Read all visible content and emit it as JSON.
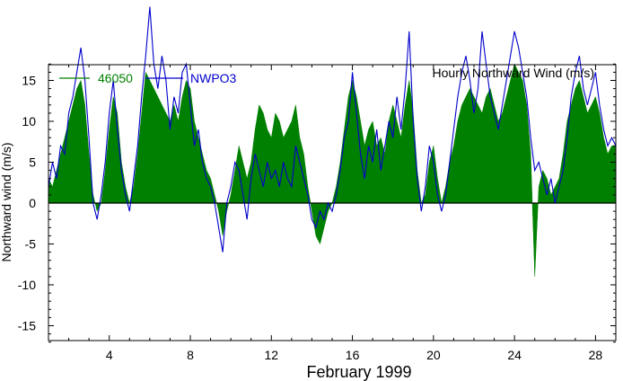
{
  "chart_data": {
    "type": "area",
    "title": "Hourly Northward Wind (m/s)",
    "xlabel": "February 1999",
    "ylabel": "Northward wind (m/s)",
    "xlim": [
      1,
      29
    ],
    "ylim": [
      -17,
      17
    ],
    "x_ticks": [
      4,
      8,
      12,
      16,
      20,
      24,
      28
    ],
    "y_ticks": [
      -15,
      -10,
      -5,
      0,
      5,
      10,
      15
    ],
    "legend_position": "top-left",
    "grid": false,
    "series": [
      {
        "name": "46050",
        "style": "filled-area",
        "color": "#008000",
        "points": [
          [
            1.0,
            3.0
          ],
          [
            1.2,
            2.0
          ],
          [
            1.4,
            4.0
          ],
          [
            1.6,
            6.0
          ],
          [
            1.8,
            8.0
          ],
          [
            2.0,
            10.0
          ],
          [
            2.2,
            12.0
          ],
          [
            2.4,
            14.0
          ],
          [
            2.6,
            15.0
          ],
          [
            2.8,
            12.0
          ],
          [
            3.0,
            6.0
          ],
          [
            3.2,
            1.0
          ],
          [
            3.4,
            -1.0
          ],
          [
            3.6,
            0.0
          ],
          [
            3.8,
            4.0
          ],
          [
            4.0,
            9.0
          ],
          [
            4.2,
            13.0
          ],
          [
            4.4,
            11.0
          ],
          [
            4.6,
            5.0
          ],
          [
            4.8,
            2.0
          ],
          [
            5.0,
            0.0
          ],
          [
            5.2,
            2.0
          ],
          [
            5.4,
            6.0
          ],
          [
            5.6,
            11.0
          ],
          [
            5.8,
            16.0
          ],
          [
            6.0,
            15.0
          ],
          [
            6.2,
            14.0
          ],
          [
            6.4,
            13.0
          ],
          [
            6.6,
            12.0
          ],
          [
            6.8,
            11.0
          ],
          [
            7.0,
            10.0
          ],
          [
            7.2,
            12.0
          ],
          [
            7.4,
            10.0
          ],
          [
            7.6,
            13.0
          ],
          [
            7.8,
            15.0
          ],
          [
            8.0,
            14.0
          ],
          [
            8.2,
            10.0
          ],
          [
            8.4,
            8.0
          ],
          [
            8.6,
            6.0
          ],
          [
            8.8,
            4.0
          ],
          [
            9.0,
            3.0
          ],
          [
            9.2,
            1.0
          ],
          [
            9.4,
            -1.0
          ],
          [
            9.6,
            -4.0
          ],
          [
            9.8,
            -1.0
          ],
          [
            10.0,
            1.0
          ],
          [
            10.2,
            4.0
          ],
          [
            10.4,
            7.0
          ],
          [
            10.6,
            5.0
          ],
          [
            10.8,
            3.0
          ],
          [
            11.0,
            5.0
          ],
          [
            11.2,
            9.0
          ],
          [
            11.4,
            12.0
          ],
          [
            11.6,
            11.0
          ],
          [
            11.8,
            9.0
          ],
          [
            12.0,
            8.0
          ],
          [
            12.2,
            11.0
          ],
          [
            12.4,
            10.0
          ],
          [
            12.6,
            8.0
          ],
          [
            12.8,
            9.0
          ],
          [
            13.0,
            10.0
          ],
          [
            13.2,
            12.0
          ],
          [
            13.4,
            8.0
          ],
          [
            13.6,
            6.0
          ],
          [
            13.8,
            2.0
          ],
          [
            14.0,
            -1.0
          ],
          [
            14.2,
            -4.0
          ],
          [
            14.4,
            -5.0
          ],
          [
            14.6,
            -3.0
          ],
          [
            14.8,
            -1.0
          ],
          [
            15.0,
            0.0
          ],
          [
            15.2,
            2.0
          ],
          [
            15.4,
            5.0
          ],
          [
            15.6,
            9.0
          ],
          [
            15.8,
            13.0
          ],
          [
            16.0,
            15.0
          ],
          [
            16.2,
            13.0
          ],
          [
            16.4,
            10.0
          ],
          [
            16.6,
            7.0
          ],
          [
            16.8,
            9.0
          ],
          [
            17.0,
            10.0
          ],
          [
            17.2,
            7.0
          ],
          [
            17.4,
            8.0
          ],
          [
            17.6,
            6.0
          ],
          [
            17.8,
            10.0
          ],
          [
            18.0,
            12.0
          ],
          [
            18.2,
            10.0
          ],
          [
            18.4,
            8.0
          ],
          [
            18.6,
            12.0
          ],
          [
            18.8,
            15.0
          ],
          [
            19.0,
            11.0
          ],
          [
            19.2,
            4.0
          ],
          [
            19.4,
            0.0
          ],
          [
            19.6,
            1.0
          ],
          [
            19.8,
            5.0
          ],
          [
            20.0,
            7.0
          ],
          [
            20.2,
            3.0
          ],
          [
            20.4,
            0.0
          ],
          [
            20.6,
            2.0
          ],
          [
            20.8,
            5.0
          ],
          [
            21.0,
            7.0
          ],
          [
            21.2,
            10.0
          ],
          [
            21.4,
            12.0
          ],
          [
            21.6,
            13.0
          ],
          [
            21.8,
            14.0
          ],
          [
            22.0,
            13.0
          ],
          [
            22.2,
            12.0
          ],
          [
            22.4,
            11.0
          ],
          [
            22.6,
            13.0
          ],
          [
            22.8,
            14.0
          ],
          [
            23.0,
            12.0
          ],
          [
            23.2,
            10.0
          ],
          [
            23.4,
            11.0
          ],
          [
            23.6,
            13.0
          ],
          [
            23.8,
            15.0
          ],
          [
            24.0,
            17.0
          ],
          [
            24.2,
            16.0
          ],
          [
            24.4,
            15.0
          ],
          [
            24.6,
            12.0
          ],
          [
            24.8,
            6.0
          ],
          [
            25.0,
            -9.0
          ],
          [
            25.2,
            2.0
          ],
          [
            25.4,
            4.0
          ],
          [
            25.6,
            3.0
          ],
          [
            25.8,
            1.0
          ],
          [
            26.0,
            2.0
          ],
          [
            26.2,
            3.0
          ],
          [
            26.4,
            6.0
          ],
          [
            26.6,
            10.0
          ],
          [
            26.8,
            12.0
          ],
          [
            27.0,
            14.0
          ],
          [
            27.2,
            15.0
          ],
          [
            27.4,
            13.0
          ],
          [
            27.6,
            11.0
          ],
          [
            27.8,
            12.0
          ],
          [
            28.0,
            13.0
          ],
          [
            28.2,
            11.0
          ],
          [
            28.4,
            8.0
          ],
          [
            28.6,
            6.0
          ],
          [
            28.8,
            7.0
          ],
          [
            29.0,
            7.0
          ]
        ]
      },
      {
        "name": "NWPO3",
        "style": "line",
        "color": "#0000cc",
        "points": [
          [
            1.0,
            2.0
          ],
          [
            1.2,
            5.0
          ],
          [
            1.4,
            3.0
          ],
          [
            1.6,
            7.0
          ],
          [
            1.8,
            6.0
          ],
          [
            2.0,
            11.0
          ],
          [
            2.2,
            13.0
          ],
          [
            2.4,
            16.0
          ],
          [
            2.6,
            19.0
          ],
          [
            2.8,
            15.0
          ],
          [
            3.0,
            8.0
          ],
          [
            3.2,
            0.0
          ],
          [
            3.4,
            -2.0
          ],
          [
            3.6,
            1.0
          ],
          [
            3.8,
            5.0
          ],
          [
            4.0,
            11.0
          ],
          [
            4.2,
            15.0
          ],
          [
            4.4,
            9.0
          ],
          [
            4.6,
            4.0
          ],
          [
            4.8,
            1.0
          ],
          [
            5.0,
            -1.0
          ],
          [
            5.2,
            3.0
          ],
          [
            5.4,
            7.0
          ],
          [
            5.6,
            13.0
          ],
          [
            5.8,
            18.0
          ],
          [
            6.0,
            24.0
          ],
          [
            6.2,
            17.0
          ],
          [
            6.4,
            14.0
          ],
          [
            6.6,
            18.0
          ],
          [
            6.8,
            15.0
          ],
          [
            7.0,
            9.0
          ],
          [
            7.2,
            13.0
          ],
          [
            7.4,
            11.0
          ],
          [
            7.6,
            16.0
          ],
          [
            7.8,
            17.0
          ],
          [
            8.0,
            12.0
          ],
          [
            8.2,
            7.0
          ],
          [
            8.4,
            9.0
          ],
          [
            8.6,
            5.0
          ],
          [
            8.8,
            3.0
          ],
          [
            9.0,
            2.0
          ],
          [
            9.2,
            0.0
          ],
          [
            9.4,
            -3.0
          ],
          [
            9.6,
            -6.0
          ],
          [
            9.8,
            0.0
          ],
          [
            10.0,
            2.0
          ],
          [
            10.2,
            5.0
          ],
          [
            10.4,
            4.0
          ],
          [
            10.6,
            1.0
          ],
          [
            10.8,
            -2.0
          ],
          [
            11.0,
            3.0
          ],
          [
            11.2,
            6.0
          ],
          [
            11.4,
            4.0
          ],
          [
            11.6,
            2.0
          ],
          [
            11.8,
            5.0
          ],
          [
            12.0,
            3.0
          ],
          [
            12.2,
            4.0
          ],
          [
            12.4,
            2.0
          ],
          [
            12.6,
            5.0
          ],
          [
            12.8,
            3.0
          ],
          [
            13.0,
            2.0
          ],
          [
            13.2,
            7.0
          ],
          [
            13.4,
            5.0
          ],
          [
            13.6,
            3.0
          ],
          [
            13.8,
            1.0
          ],
          [
            14.0,
            -2.0
          ],
          [
            14.2,
            -3.0
          ],
          [
            14.4,
            -1.0
          ],
          [
            14.6,
            -2.0
          ],
          [
            14.8,
            0.0
          ],
          [
            15.0,
            -1.0
          ],
          [
            15.2,
            1.0
          ],
          [
            15.4,
            4.0
          ],
          [
            15.6,
            8.0
          ],
          [
            15.8,
            10.0
          ],
          [
            16.0,
            16.0
          ],
          [
            16.2,
            11.0
          ],
          [
            16.4,
            6.0
          ],
          [
            16.6,
            3.0
          ],
          [
            16.8,
            7.0
          ],
          [
            17.0,
            5.0
          ],
          [
            17.2,
            9.0
          ],
          [
            17.4,
            4.0
          ],
          [
            17.6,
            7.0
          ],
          [
            17.8,
            10.0
          ],
          [
            18.0,
            8.0
          ],
          [
            18.2,
            13.0
          ],
          [
            18.4,
            9.0
          ],
          [
            18.6,
            14.0
          ],
          [
            18.8,
            21.0
          ],
          [
            19.0,
            10.0
          ],
          [
            19.2,
            3.0
          ],
          [
            19.4,
            -1.0
          ],
          [
            19.6,
            2.0
          ],
          [
            19.8,
            7.0
          ],
          [
            20.0,
            5.0
          ],
          [
            20.2,
            1.0
          ],
          [
            20.4,
            -1.0
          ],
          [
            20.6,
            1.0
          ],
          [
            20.8,
            5.0
          ],
          [
            21.0,
            9.0
          ],
          [
            21.2,
            13.0
          ],
          [
            21.4,
            16.0
          ],
          [
            21.6,
            18.0
          ],
          [
            21.8,
            15.0
          ],
          [
            22.0,
            11.0
          ],
          [
            22.2,
            14.0
          ],
          [
            22.4,
            21.0
          ],
          [
            22.6,
            17.0
          ],
          [
            22.8,
            13.0
          ],
          [
            23.0,
            11.0
          ],
          [
            23.2,
            9.0
          ],
          [
            23.4,
            12.0
          ],
          [
            23.6,
            15.0
          ],
          [
            23.8,
            18.0
          ],
          [
            24.0,
            21.0
          ],
          [
            24.2,
            19.0
          ],
          [
            24.4,
            16.0
          ],
          [
            24.6,
            13.0
          ],
          [
            24.8,
            8.0
          ],
          [
            25.0,
            4.0
          ],
          [
            25.2,
            5.0
          ],
          [
            25.4,
            3.0
          ],
          [
            25.6,
            1.0
          ],
          [
            25.8,
            3.0
          ],
          [
            26.0,
            0.0
          ],
          [
            26.2,
            2.0
          ],
          [
            26.4,
            4.0
          ],
          [
            26.6,
            8.0
          ],
          [
            26.8,
            13.0
          ],
          [
            27.0,
            16.0
          ],
          [
            27.2,
            18.0
          ],
          [
            27.4,
            14.0
          ],
          [
            27.6,
            12.0
          ],
          [
            27.8,
            14.0
          ],
          [
            28.0,
            16.0
          ],
          [
            28.2,
            12.0
          ],
          [
            28.4,
            9.0
          ],
          [
            28.6,
            7.0
          ],
          [
            28.8,
            8.0
          ],
          [
            29.0,
            7.0
          ]
        ]
      }
    ]
  }
}
